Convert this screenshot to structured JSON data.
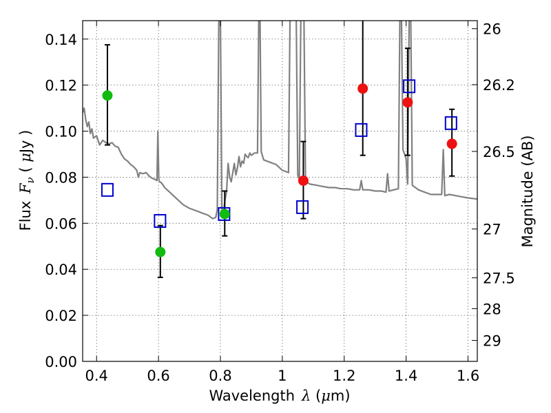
{
  "chart_data": {
    "type": "scatter",
    "xlabel_text": "Wavelength",
    "xlabel_symbol": "λ",
    "xlabel_unit_open": " (",
    "xlabel_unit_mu": "μ",
    "xlabel_unit_rest": "m)",
    "ylabel_text": "Flux ",
    "ylabel_symbol": "F",
    "ylabel_sub": "ν",
    "ylabel_unit_open": " ( ",
    "ylabel_unit_mu": "μ",
    "ylabel_unit_rest": "Jy )",
    "y2label": "Magnitude (AB)",
    "xlim": [
      0.355,
      1.63
    ],
    "ylim": [
      0.0,
      0.148
    ],
    "grid": true,
    "x_ticks": [
      {
        "value": 0.4,
        "label": "0.4"
      },
      {
        "value": 0.6,
        "label": "0.6"
      },
      {
        "value": 0.8,
        "label": "0.8"
      },
      {
        "value": 1.0,
        "label": "1"
      },
      {
        "value": 1.2,
        "label": "1.2"
      },
      {
        "value": 1.4,
        "label": "1.4"
      },
      {
        "value": 1.6,
        "label": "1.6"
      }
    ],
    "y_ticks": [
      {
        "value": 0.0,
        "label": "0.00"
      },
      {
        "value": 0.02,
        "label": "0.02"
      },
      {
        "value": 0.04,
        "label": "0.04"
      },
      {
        "value": 0.06,
        "label": "0.06"
      },
      {
        "value": 0.08,
        "label": "0.08"
      },
      {
        "value": 0.1,
        "label": "0.10"
      },
      {
        "value": 0.12,
        "label": "0.12"
      },
      {
        "value": 0.14,
        "label": "0.14"
      }
    ],
    "y2_ticks": [
      {
        "flux": 0.1445,
        "label": "26"
      },
      {
        "flux": 0.1202,
        "label": "26.2"
      },
      {
        "flux": 0.0912,
        "label": "26.5"
      },
      {
        "flux": 0.0575,
        "label": "27"
      },
      {
        "flux": 0.0363,
        "label": "27.5"
      },
      {
        "flux": 0.0229,
        "label": "28"
      },
      {
        "flux": 0.0091,
        "label": "29"
      }
    ],
    "model_spectrum": {
      "color": "#808080",
      "points": [
        [
          0.355,
          0.108
        ],
        [
          0.36,
          0.11
        ],
        [
          0.365,
          0.105
        ],
        [
          0.37,
          0.102
        ],
        [
          0.375,
          0.104
        ],
        [
          0.38,
          0.099
        ],
        [
          0.385,
          0.101
        ],
        [
          0.39,
          0.097
        ],
        [
          0.4,
          0.098
        ],
        [
          0.41,
          0.094
        ],
        [
          0.42,
          0.096
        ],
        [
          0.43,
          0.095
        ],
        [
          0.44,
          0.0945
        ],
        [
          0.45,
          0.095
        ],
        [
          0.46,
          0.0935
        ],
        [
          0.47,
          0.093
        ],
        [
          0.48,
          0.09
        ],
        [
          0.49,
          0.088
        ],
        [
          0.5,
          0.087
        ],
        [
          0.51,
          0.0855
        ],
        [
          0.52,
          0.0845
        ],
        [
          0.53,
          0.083
        ],
        [
          0.535,
          0.08
        ],
        [
          0.54,
          0.082
        ],
        [
          0.55,
          0.0815
        ],
        [
          0.56,
          0.082
        ],
        [
          0.57,
          0.0805
        ],
        [
          0.58,
          0.0795
        ],
        [
          0.59,
          0.079
        ],
        [
          0.595,
          0.0785
        ],
        [
          0.598,
          0.1
        ],
        [
          0.601,
          0.079
        ],
        [
          0.604,
          0.078
        ],
        [
          0.61,
          0.0775
        ],
        [
          0.62,
          0.0755
        ],
        [
          0.64,
          0.073
        ],
        [
          0.66,
          0.0705
        ],
        [
          0.68,
          0.068
        ],
        [
          0.7,
          0.0665
        ],
        [
          0.72,
          0.0655
        ],
        [
          0.74,
          0.0645
        ],
        [
          0.76,
          0.0635
        ],
        [
          0.775,
          0.062
        ],
        [
          0.785,
          0.0625
        ],
        [
          0.79,
          0.066
        ],
        [
          0.795,
          0.15
        ],
        [
          0.8,
          0.15
        ],
        [
          0.805,
          0.066
        ],
        [
          0.81,
          0.065
        ],
        [
          0.815,
          0.07
        ],
        [
          0.82,
          0.074
        ],
        [
          0.825,
          0.086
        ],
        [
          0.83,
          0.08
        ],
        [
          0.835,
          0.078
        ],
        [
          0.84,
          0.082
        ],
        [
          0.845,
          0.086
        ],
        [
          0.85,
          0.081
        ],
        [
          0.855,
          0.084
        ],
        [
          0.86,
          0.089
        ],
        [
          0.865,
          0.0845
        ],
        [
          0.87,
          0.087
        ],
        [
          0.875,
          0.086
        ],
        [
          0.88,
          0.09
        ],
        [
          0.885,
          0.089
        ],
        [
          0.89,
          0.0885
        ],
        [
          0.895,
          0.0905
        ],
        [
          0.9,
          0.0895
        ],
        [
          0.91,
          0.0905
        ],
        [
          0.92,
          0.0905
        ],
        [
          0.924,
          0.15
        ],
        [
          0.928,
          0.15
        ],
        [
          0.932,
          0.091
        ],
        [
          0.94,
          0.0875
        ],
        [
          0.96,
          0.0865
        ],
        [
          0.98,
          0.0855
        ],
        [
          1.0,
          0.083
        ],
        [
          1.02,
          0.082
        ],
        [
          1.025,
          0.15
        ],
        [
          1.045,
          0.15
        ],
        [
          1.05,
          0.081
        ],
        [
          1.055,
          0.079
        ],
        [
          1.06,
          0.15
        ],
        [
          1.07,
          0.15
        ],
        [
          1.075,
          0.078
        ],
        [
          1.09,
          0.077
        ],
        [
          1.11,
          0.0765
        ],
        [
          1.13,
          0.076
        ],
        [
          1.15,
          0.0755
        ],
        [
          1.17,
          0.0755
        ],
        [
          1.19,
          0.075
        ],
        [
          1.21,
          0.075
        ],
        [
          1.23,
          0.0745
        ],
        [
          1.25,
          0.0745
        ],
        [
          1.255,
          0.0785
        ],
        [
          1.26,
          0.0745
        ],
        [
          1.28,
          0.0745
        ],
        [
          1.3,
          0.074
        ],
        [
          1.32,
          0.074
        ],
        [
          1.335,
          0.0735
        ],
        [
          1.34,
          0.0815
        ],
        [
          1.345,
          0.074
        ],
        [
          1.36,
          0.0745
        ],
        [
          1.375,
          0.075
        ],
        [
          1.38,
          0.15
        ],
        [
          1.385,
          0.15
        ],
        [
          1.39,
          0.092
        ],
        [
          1.4,
          0.088
        ],
        [
          1.405,
          0.077
        ],
        [
          1.41,
          0.15
        ],
        [
          1.415,
          0.15
        ],
        [
          1.42,
          0.0765
        ],
        [
          1.44,
          0.0745
        ],
        [
          1.46,
          0.0735
        ],
        [
          1.48,
          0.0725
        ],
        [
          1.5,
          0.0725
        ],
        [
          1.515,
          0.0725
        ],
        [
          1.52,
          0.092
        ],
        [
          1.525,
          0.072
        ],
        [
          1.54,
          0.0725
        ],
        [
          1.56,
          0.072
        ],
        [
          1.58,
          0.0715
        ],
        [
          1.6,
          0.071
        ],
        [
          1.63,
          0.0705
        ]
      ]
    },
    "model_photometry": {
      "marker": "open-square",
      "color": "#0000cc",
      "points": [
        [
          0.435,
          0.0745
        ],
        [
          0.605,
          0.061
        ],
        [
          0.812,
          0.064
        ],
        [
          1.065,
          0.067
        ],
        [
          1.255,
          0.1005
        ],
        [
          1.41,
          0.1195
        ],
        [
          1.545,
          0.1035
        ]
      ]
    },
    "observed_optical": {
      "marker": "filled-circle",
      "color": "#11bb11",
      "points": [
        {
          "x": 0.435,
          "y": 0.1155,
          "err_low": 0.094,
          "err_high": 0.1375
        },
        {
          "x": 0.606,
          "y": 0.0475,
          "err_low": 0.0365,
          "err_high": 0.059
        },
        {
          "x": 0.814,
          "y": 0.064,
          "err_low": 0.0545,
          "err_high": 0.074
        }
      ]
    },
    "observed_nir": {
      "marker": "filled-circle",
      "color": "#ee1111",
      "points": [
        {
          "x": 1.068,
          "y": 0.0785,
          "err_low": 0.062,
          "err_high": 0.0955
        },
        {
          "x": 1.26,
          "y": 0.1185,
          "err_low": 0.0895,
          "err_high": 0.15
        },
        {
          "x": 1.405,
          "y": 0.1125,
          "err_low": 0.0895,
          "err_high": 0.136
        },
        {
          "x": 1.548,
          "y": 0.0945,
          "err_low": 0.0805,
          "err_high": 0.1095
        }
      ]
    }
  }
}
